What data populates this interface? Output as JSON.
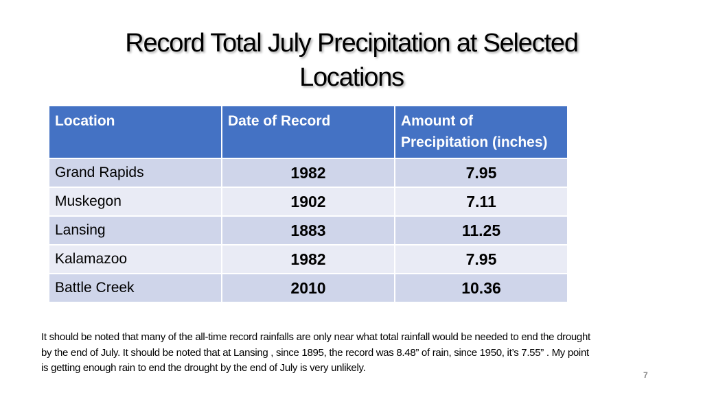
{
  "slide": {
    "title_line1": "Record Total July Precipitation at Selected",
    "title_line2": "Locations",
    "table": {
      "headers": [
        "Location",
        "Date of Record",
        "Amount of Precipitation (inches)"
      ],
      "rows": [
        [
          "Grand Rapids",
          "1982",
          "7.95"
        ],
        [
          "Muskegon",
          "1902",
          "7.11"
        ],
        [
          "Lansing",
          "1883",
          "11.25"
        ],
        [
          "Kalamazoo",
          "1982",
          "7.95"
        ],
        [
          "Battle Creek",
          "2010",
          "10.36"
        ]
      ]
    },
    "note": "It should be noted that many of the all-time record rainfalls are only near what total rainfall would be needed to end the drought by the end of July.  It should be noted that at Lansing , since 1895, the record was 8.48” of rain, since 1950, it’s 7.55” .  My point is getting enough rain to end the drought by the end of July is very unlikely.",
    "page_number": "7",
    "colors": {
      "header": "#4472C4",
      "row_odd": "#CFD5EA",
      "row_even": "#E9EBF5"
    }
  }
}
